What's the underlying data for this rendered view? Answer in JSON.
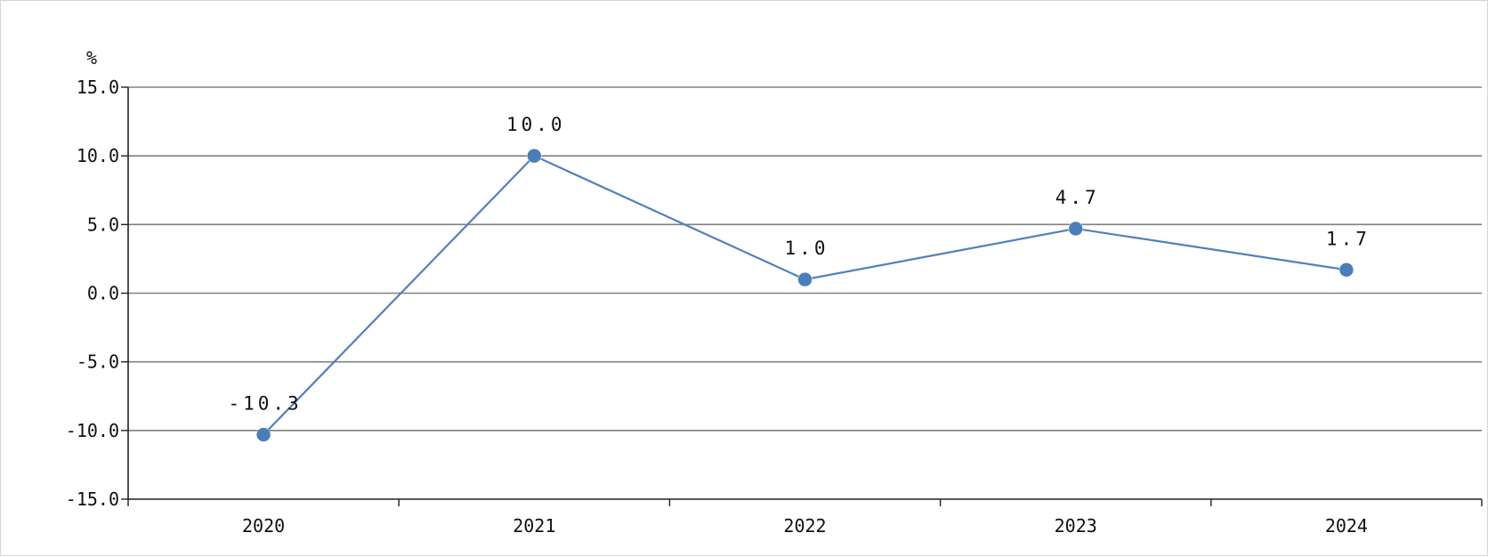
{
  "chart_data": {
    "type": "line",
    "title": "",
    "xlabel": "",
    "ylabel": "%",
    "categories": [
      "2020",
      "2021",
      "2022",
      "2023",
      "2024"
    ],
    "ylim": [
      -15.0,
      15.0
    ],
    "yticks": [
      "15.0",
      "10.0",
      "5.0",
      "0.0",
      "-5.0",
      "-10.0",
      "-15.0"
    ],
    "ytick_values": [
      15,
      10,
      5,
      0,
      -5,
      -10,
      -15
    ],
    "series": [
      {
        "values": [
          -10.3,
          10.0,
          1.0,
          4.7,
          1.7
        ],
        "labels": [
          "-10.3",
          "10.0",
          "1.0",
          "4.7",
          "1.7"
        ]
      }
    ],
    "grid": true,
    "legend": "none",
    "colors": {
      "series": "#4f81bd",
      "marker": "#4a7ebb",
      "grid": "#808080",
      "axis": "#222222"
    }
  }
}
